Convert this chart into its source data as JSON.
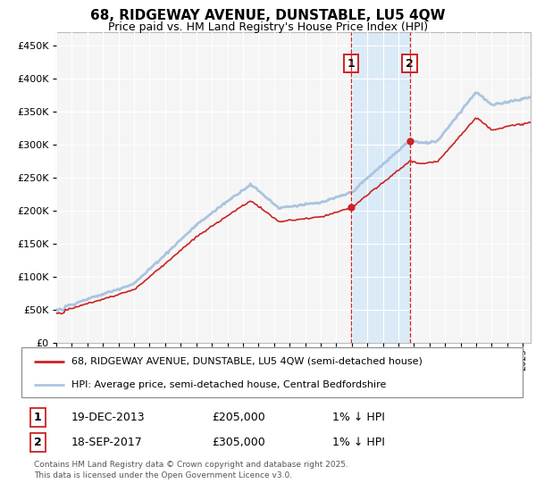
{
  "title": "68, RIDGEWAY AVENUE, DUNSTABLE, LU5 4QW",
  "subtitle": "Price paid vs. HM Land Registry's House Price Index (HPI)",
  "legend_line1": "68, RIDGEWAY AVENUE, DUNSTABLE, LU5 4QW (semi-detached house)",
  "legend_line2": "HPI: Average price, semi-detached house, Central Bedfordshire",
  "t1_label": "1",
  "t1_date": "19-DEC-2013",
  "t1_price": "£205,000",
  "t1_note": "1% ↓ HPI",
  "t1_year": 2013.96,
  "t1_value": 205000,
  "t2_label": "2",
  "t2_date": "18-SEP-2017",
  "t2_price": "£305,000",
  "t2_note": "1% ↓ HPI",
  "t2_year": 2017.72,
  "t2_value": 305000,
  "footer": "Contains HM Land Registry data © Crown copyright and database right 2025.\nThis data is licensed under the Open Government Licence v3.0.",
  "hpi_color": "#aac4e0",
  "price_color": "#cc2222",
  "shade_color": "#daeaf7",
  "vline_color": "#cc2222",
  "bg_color": "#f5f5f5",
  "grid_color": "#ffffff",
  "ylim_min": 0,
  "ylim_max": 470000,
  "yticks": [
    0,
    50000,
    100000,
    150000,
    200000,
    250000,
    300000,
    350000,
    400000,
    450000
  ],
  "xmin": 1995,
  "xmax": 2025.5
}
